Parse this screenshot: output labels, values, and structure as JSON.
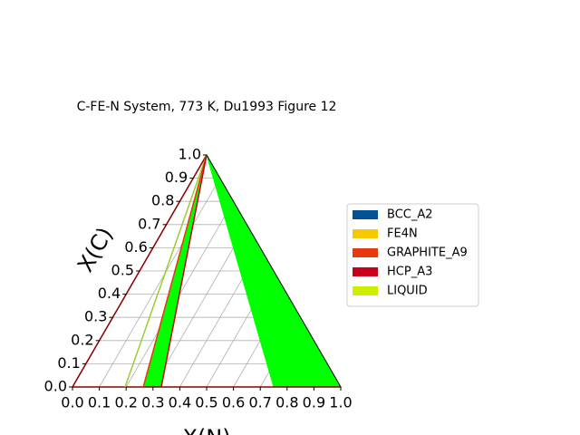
{
  "chart_data": {
    "type": "ternary",
    "title": "C-FE-N System, 773 K, Du1993 Figure 12",
    "xlabel": "X(N)",
    "ylabel": "X(C)",
    "xlim": [
      0,
      1
    ],
    "ylim": [
      0,
      1
    ],
    "xticks": [
      {
        "value": 0,
        "label": "0.0"
      },
      0.1,
      0.2,
      0.3,
      0.4,
      0.5,
      0.6,
      0.7,
      0.8,
      0.9,
      {
        "value": 1,
        "label": "1.0"
      }
    ],
    "yticks": [
      {
        "value": 0,
        "label": "0.0"
      },
      0.1,
      0.2,
      0.3,
      0.4,
      0.5,
      0.6,
      0.7,
      0.8,
      0.9,
      {
        "value": 1,
        "label": "1.0"
      }
    ],
    "grid": true,
    "legend_location": "right",
    "legend": [
      {
        "name": "BCC_A2",
        "color": "#005293"
      },
      {
        "name": "FE4N",
        "color": "#f5c800"
      },
      {
        "name": "GRAPHITE_A9",
        "color": "#e8380d"
      },
      {
        "name": "HCP_A3",
        "color": "#c8001e"
      },
      {
        "name": "LIQUID",
        "color": "#cdee00"
      }
    ],
    "regions": [
      {
        "color": "#00ff00",
        "x": [
          0.264,
          0.331,
          0
        ],
        "y": [
          0,
          0,
          1
        ]
      },
      {
        "color": "#00ff00",
        "x": [
          0.75,
          1,
          0
        ],
        "y": [
          0,
          0,
          1
        ]
      }
    ],
    "lines": [
      {
        "color": "#8b0000",
        "x": [
          0,
          0
        ],
        "y": [
          0,
          1
        ]
      },
      {
        "color": "#8b0000",
        "x": [
          0,
          1
        ],
        "y": [
          0,
          0
        ]
      },
      {
        "color": "#9acd32",
        "x": [
          0.196,
          0
        ],
        "y": [
          0,
          1
        ]
      },
      {
        "color": "#e8380d",
        "x": [
          0.264,
          0
        ],
        "y": [
          0,
          1
        ]
      },
      {
        "color": "#c8001e",
        "x": [
          0.331,
          0
        ],
        "y": [
          0,
          1
        ]
      }
    ]
  }
}
